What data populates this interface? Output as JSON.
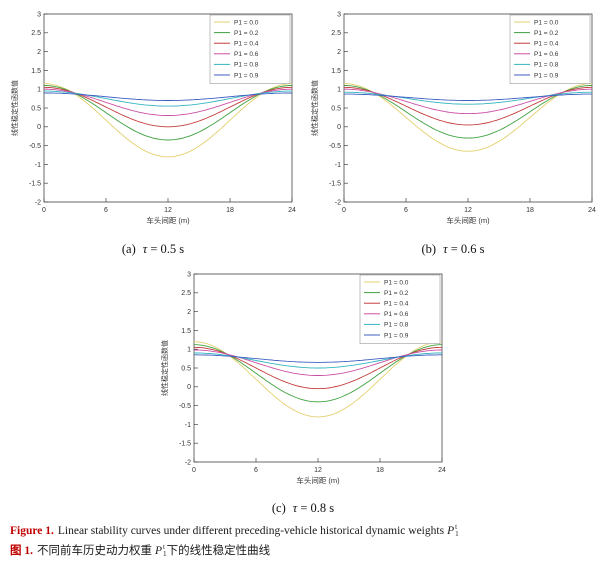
{
  "colors": {
    "figure_label_red": "#c00000",
    "axis": "#444444",
    "series_palette": [
      "#e4cf6f",
      "#3fa23f",
      "#c43c3c",
      "#cc4fa6",
      "#35b5c1",
      "#3f5fc2"
    ]
  },
  "figure_captions": {
    "english": {
      "label": "Figure 1.",
      "text": "Linear stability curves under different preceding-vehicle historical dynamic weights",
      "symbol_base": "P",
      "symbol_sup": "t",
      "symbol_sub": "1"
    },
    "chinese": {
      "label": "图 1.",
      "text_before": "不同前车历史动力权重",
      "symbol_base": "P",
      "symbol_sup": "t",
      "symbol_sub": "1",
      "text_after": "下的线性稳定性曲线"
    }
  },
  "chart_data": [
    {
      "type": "line",
      "title": "",
      "xlabel": "车头间距 (m)",
      "ylabel": "线性稳定性函数值",
      "xlim": [
        0,
        24
      ],
      "ylim": [
        -2,
        3
      ],
      "x_ticks": [
        0,
        6,
        12,
        18,
        24
      ],
      "y_ticks": [
        -2,
        -1.5,
        -1,
        -0.5,
        0,
        0.5,
        1,
        1.5,
        2,
        2.5,
        3
      ],
      "grid": false,
      "legend_position": "top-right",
      "caption": {
        "label": "(a)",
        "symbol": "τ",
        "rest": " = 0.5 s"
      },
      "series": [
        {
          "name": "P1 = 0.0",
          "color": "#e4cf6f",
          "y_edge": 1.15,
          "y_min": -0.8,
          "x": [
            0,
            6,
            12,
            18,
            24
          ],
          "values": [
            1.15,
            0.18,
            -0.8,
            0.18,
            1.15
          ]
        },
        {
          "name": "P1 = 0.2",
          "color": "#3fa23f",
          "y_edge": 1.1,
          "y_min": -0.35,
          "x": [
            0,
            6,
            12,
            18,
            24
          ],
          "values": [
            1.1,
            0.38,
            -0.35,
            0.38,
            1.1
          ]
        },
        {
          "name": "P1 = 0.4",
          "color": "#c43c3c",
          "y_edge": 1.05,
          "y_min": 0.0,
          "x": [
            0,
            6,
            12,
            18,
            24
          ],
          "values": [
            1.05,
            0.53,
            0.0,
            0.53,
            1.05
          ]
        },
        {
          "name": "P1 = 0.6",
          "color": "#cc4fa6",
          "y_edge": 1.0,
          "y_min": 0.3,
          "x": [
            0,
            6,
            12,
            18,
            24
          ],
          "values": [
            1.0,
            0.65,
            0.3,
            0.65,
            1.0
          ]
        },
        {
          "name": "P1 = 0.8",
          "color": "#35b5c1",
          "y_edge": 0.95,
          "y_min": 0.55,
          "x": [
            0,
            6,
            12,
            18,
            24
          ],
          "values": [
            0.95,
            0.75,
            0.55,
            0.75,
            0.95
          ]
        },
        {
          "name": "P1 = 0.9",
          "color": "#3f5fc2",
          "y_edge": 0.9,
          "y_min": 0.7,
          "x": [
            0,
            6,
            12,
            18,
            24
          ],
          "values": [
            0.9,
            0.8,
            0.7,
            0.8,
            0.9
          ]
        }
      ]
    },
    {
      "type": "line",
      "title": "",
      "xlabel": "车头间距 (m)",
      "ylabel": "线性稳定性函数值",
      "xlim": [
        0,
        24
      ],
      "ylim": [
        -2,
        3
      ],
      "x_ticks": [
        0,
        6,
        12,
        18,
        24
      ],
      "y_ticks": [
        -2,
        -1.5,
        -1,
        -0.5,
        0,
        0.5,
        1,
        1.5,
        2,
        2.5,
        3
      ],
      "grid": false,
      "legend_position": "top-right",
      "caption": {
        "label": "(b)",
        "symbol": "τ",
        "rest": " = 0.6 s"
      },
      "series": [
        {
          "name": "P1 = 0.0",
          "color": "#e4cf6f",
          "y_edge": 1.15,
          "y_min": -0.65,
          "x": [
            0,
            6,
            12,
            18,
            24
          ],
          "values": [
            1.15,
            0.25,
            -0.65,
            0.25,
            1.15
          ]
        },
        {
          "name": "P1 = 0.2",
          "color": "#3fa23f",
          "y_edge": 1.1,
          "y_min": -0.3,
          "x": [
            0,
            6,
            12,
            18,
            24
          ],
          "values": [
            1.1,
            0.4,
            -0.3,
            0.4,
            1.1
          ]
        },
        {
          "name": "P1 = 0.4",
          "color": "#c43c3c",
          "y_edge": 1.05,
          "y_min": 0.05,
          "x": [
            0,
            6,
            12,
            18,
            24
          ],
          "values": [
            1.05,
            0.55,
            0.05,
            0.55,
            1.05
          ]
        },
        {
          "name": "P1 = 0.6",
          "color": "#cc4fa6",
          "y_edge": 1.0,
          "y_min": 0.35,
          "x": [
            0,
            6,
            12,
            18,
            24
          ],
          "values": [
            1.0,
            0.68,
            0.35,
            0.68,
            1.0
          ]
        },
        {
          "name": "P1 = 0.8",
          "color": "#35b5c1",
          "y_edge": 0.92,
          "y_min": 0.6,
          "x": [
            0,
            6,
            12,
            18,
            24
          ],
          "values": [
            0.92,
            0.76,
            0.6,
            0.76,
            0.92
          ]
        },
        {
          "name": "P1 = 0.9",
          "color": "#3f5fc2",
          "y_edge": 0.87,
          "y_min": 0.7,
          "x": [
            0,
            6,
            12,
            18,
            24
          ],
          "values": [
            0.87,
            0.79,
            0.7,
            0.79,
            0.87
          ]
        }
      ]
    },
    {
      "type": "line",
      "title": "",
      "xlabel": "车头间距 (m)",
      "ylabel": "线性稳定性函数值",
      "xlim": [
        0,
        24
      ],
      "ylim": [
        -2,
        3
      ],
      "x_ticks": [
        0,
        6,
        12,
        18,
        24
      ],
      "y_ticks": [
        -2,
        -1.5,
        -1,
        -0.5,
        0,
        0.5,
        1,
        1.5,
        2,
        2.5,
        3
      ],
      "grid": false,
      "legend_position": "top-right",
      "caption": {
        "label": "(c)",
        "symbol": "τ",
        "rest": " = 0.8 s"
      },
      "series": [
        {
          "name": "P1 = 0.0",
          "color": "#e4cf6f",
          "y_edge": 1.2,
          "y_min": -0.8,
          "x": [
            0,
            6,
            12,
            18,
            24
          ],
          "values": [
            1.2,
            0.2,
            -0.8,
            0.2,
            1.2
          ]
        },
        {
          "name": "P1 = 0.2",
          "color": "#3fa23f",
          "y_edge": 1.12,
          "y_min": -0.4,
          "x": [
            0,
            6,
            12,
            18,
            24
          ],
          "values": [
            1.12,
            0.36,
            -0.4,
            0.36,
            1.12
          ]
        },
        {
          "name": "P1 = 0.4",
          "color": "#c43c3c",
          "y_edge": 1.05,
          "y_min": -0.05,
          "x": [
            0,
            6,
            12,
            18,
            24
          ],
          "values": [
            1.05,
            0.5,
            -0.05,
            0.5,
            1.05
          ]
        },
        {
          "name": "P1 = 0.6",
          "color": "#cc4fa6",
          "y_edge": 0.98,
          "y_min": 0.3,
          "x": [
            0,
            6,
            12,
            18,
            24
          ],
          "values": [
            0.98,
            0.64,
            0.3,
            0.64,
            0.98
          ]
        },
        {
          "name": "P1 = 0.8",
          "color": "#35b5c1",
          "y_edge": 0.9,
          "y_min": 0.5,
          "x": [
            0,
            6,
            12,
            18,
            24
          ],
          "values": [
            0.9,
            0.7,
            0.5,
            0.7,
            0.9
          ]
        },
        {
          "name": "P1 = 0.9",
          "color": "#3f5fc2",
          "y_edge": 0.85,
          "y_min": 0.65,
          "x": [
            0,
            6,
            12,
            18,
            24
          ],
          "values": [
            0.85,
            0.75,
            0.65,
            0.75,
            0.85
          ]
        }
      ]
    }
  ]
}
